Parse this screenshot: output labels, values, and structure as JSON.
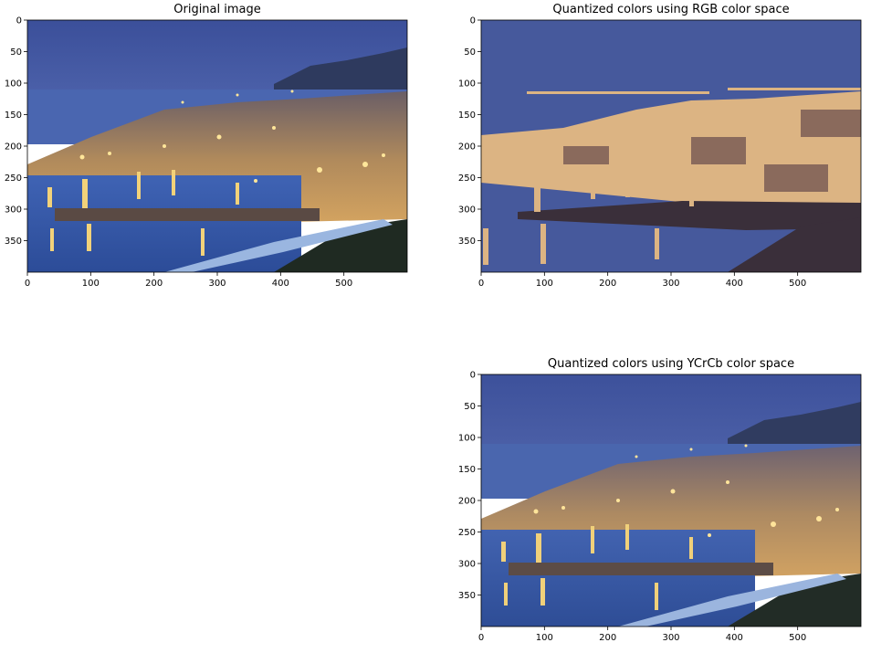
{
  "chart_data": [
    {
      "type": "image",
      "title": "Original image",
      "xticks": [
        0,
        100,
        200,
        300,
        400,
        500
      ],
      "yticks": [
        0,
        50,
        100,
        150,
        200,
        250,
        300,
        350
      ],
      "xlim": [
        0,
        600
      ],
      "ylim": [
        400,
        0
      ]
    },
    {
      "type": "image",
      "title": "Quantized colors using RGB color space",
      "xticks": [
        0,
        100,
        200,
        300,
        400,
        500
      ],
      "yticks": [
        0,
        50,
        100,
        150,
        200,
        250,
        300,
        350
      ],
      "xlim": [
        0,
        600
      ],
      "ylim": [
        400,
        0
      ],
      "palette": [
        "#46599c",
        "#3a2f3a",
        "#8a6a5c",
        "#dcb483"
      ]
    },
    {
      "type": "image",
      "title": "Quantized colors using YCrCb color space",
      "xticks": [
        0,
        100,
        200,
        300,
        400,
        500
      ],
      "yticks": [
        0,
        50,
        100,
        150,
        200,
        250,
        300,
        350
      ],
      "xlim": [
        0,
        600
      ],
      "ylim": [
        400,
        0
      ]
    }
  ]
}
